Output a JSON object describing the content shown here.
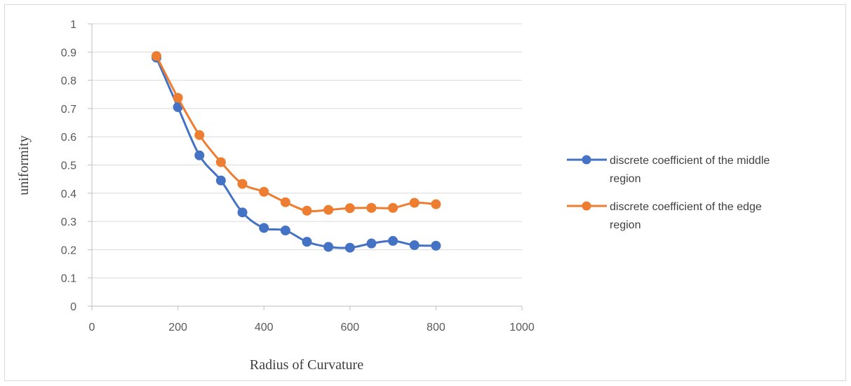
{
  "chart_data": {
    "type": "scatter",
    "title": "",
    "xlabel": "Radius of Curvature",
    "ylabel": "uniformity",
    "xlim": [
      0,
      1000
    ],
    "ylim": [
      0,
      1
    ],
    "xticks": [
      "0",
      "200",
      "400",
      "600",
      "800",
      "1000"
    ],
    "yticks": [
      "0",
      "0.1",
      "0.2",
      "0.3",
      "0.4",
      "0.5",
      "0.6",
      "0.7",
      "0.8",
      "0.9",
      "1"
    ],
    "grid": "horizontal",
    "legend_position": "right",
    "x": [
      150,
      200,
      250,
      300,
      350,
      400,
      450,
      500,
      550,
      600,
      650,
      700,
      750,
      800
    ],
    "series": [
      {
        "name": "discrete coefficient of the middle region",
        "color": "#4472c4",
        "values": [
          0.88,
          0.705,
          0.534,
          0.445,
          0.332,
          0.277,
          0.268,
          0.228,
          0.21,
          0.207,
          0.222,
          0.231,
          0.216,
          0.214
        ]
      },
      {
        "name": "discrete coefficient of the edge region",
        "color": "#ed7d31",
        "values": [
          0.886,
          0.738,
          0.606,
          0.51,
          0.433,
          0.405,
          0.368,
          0.338,
          0.341,
          0.347,
          0.348,
          0.348,
          0.366,
          0.361
        ]
      }
    ]
  }
}
